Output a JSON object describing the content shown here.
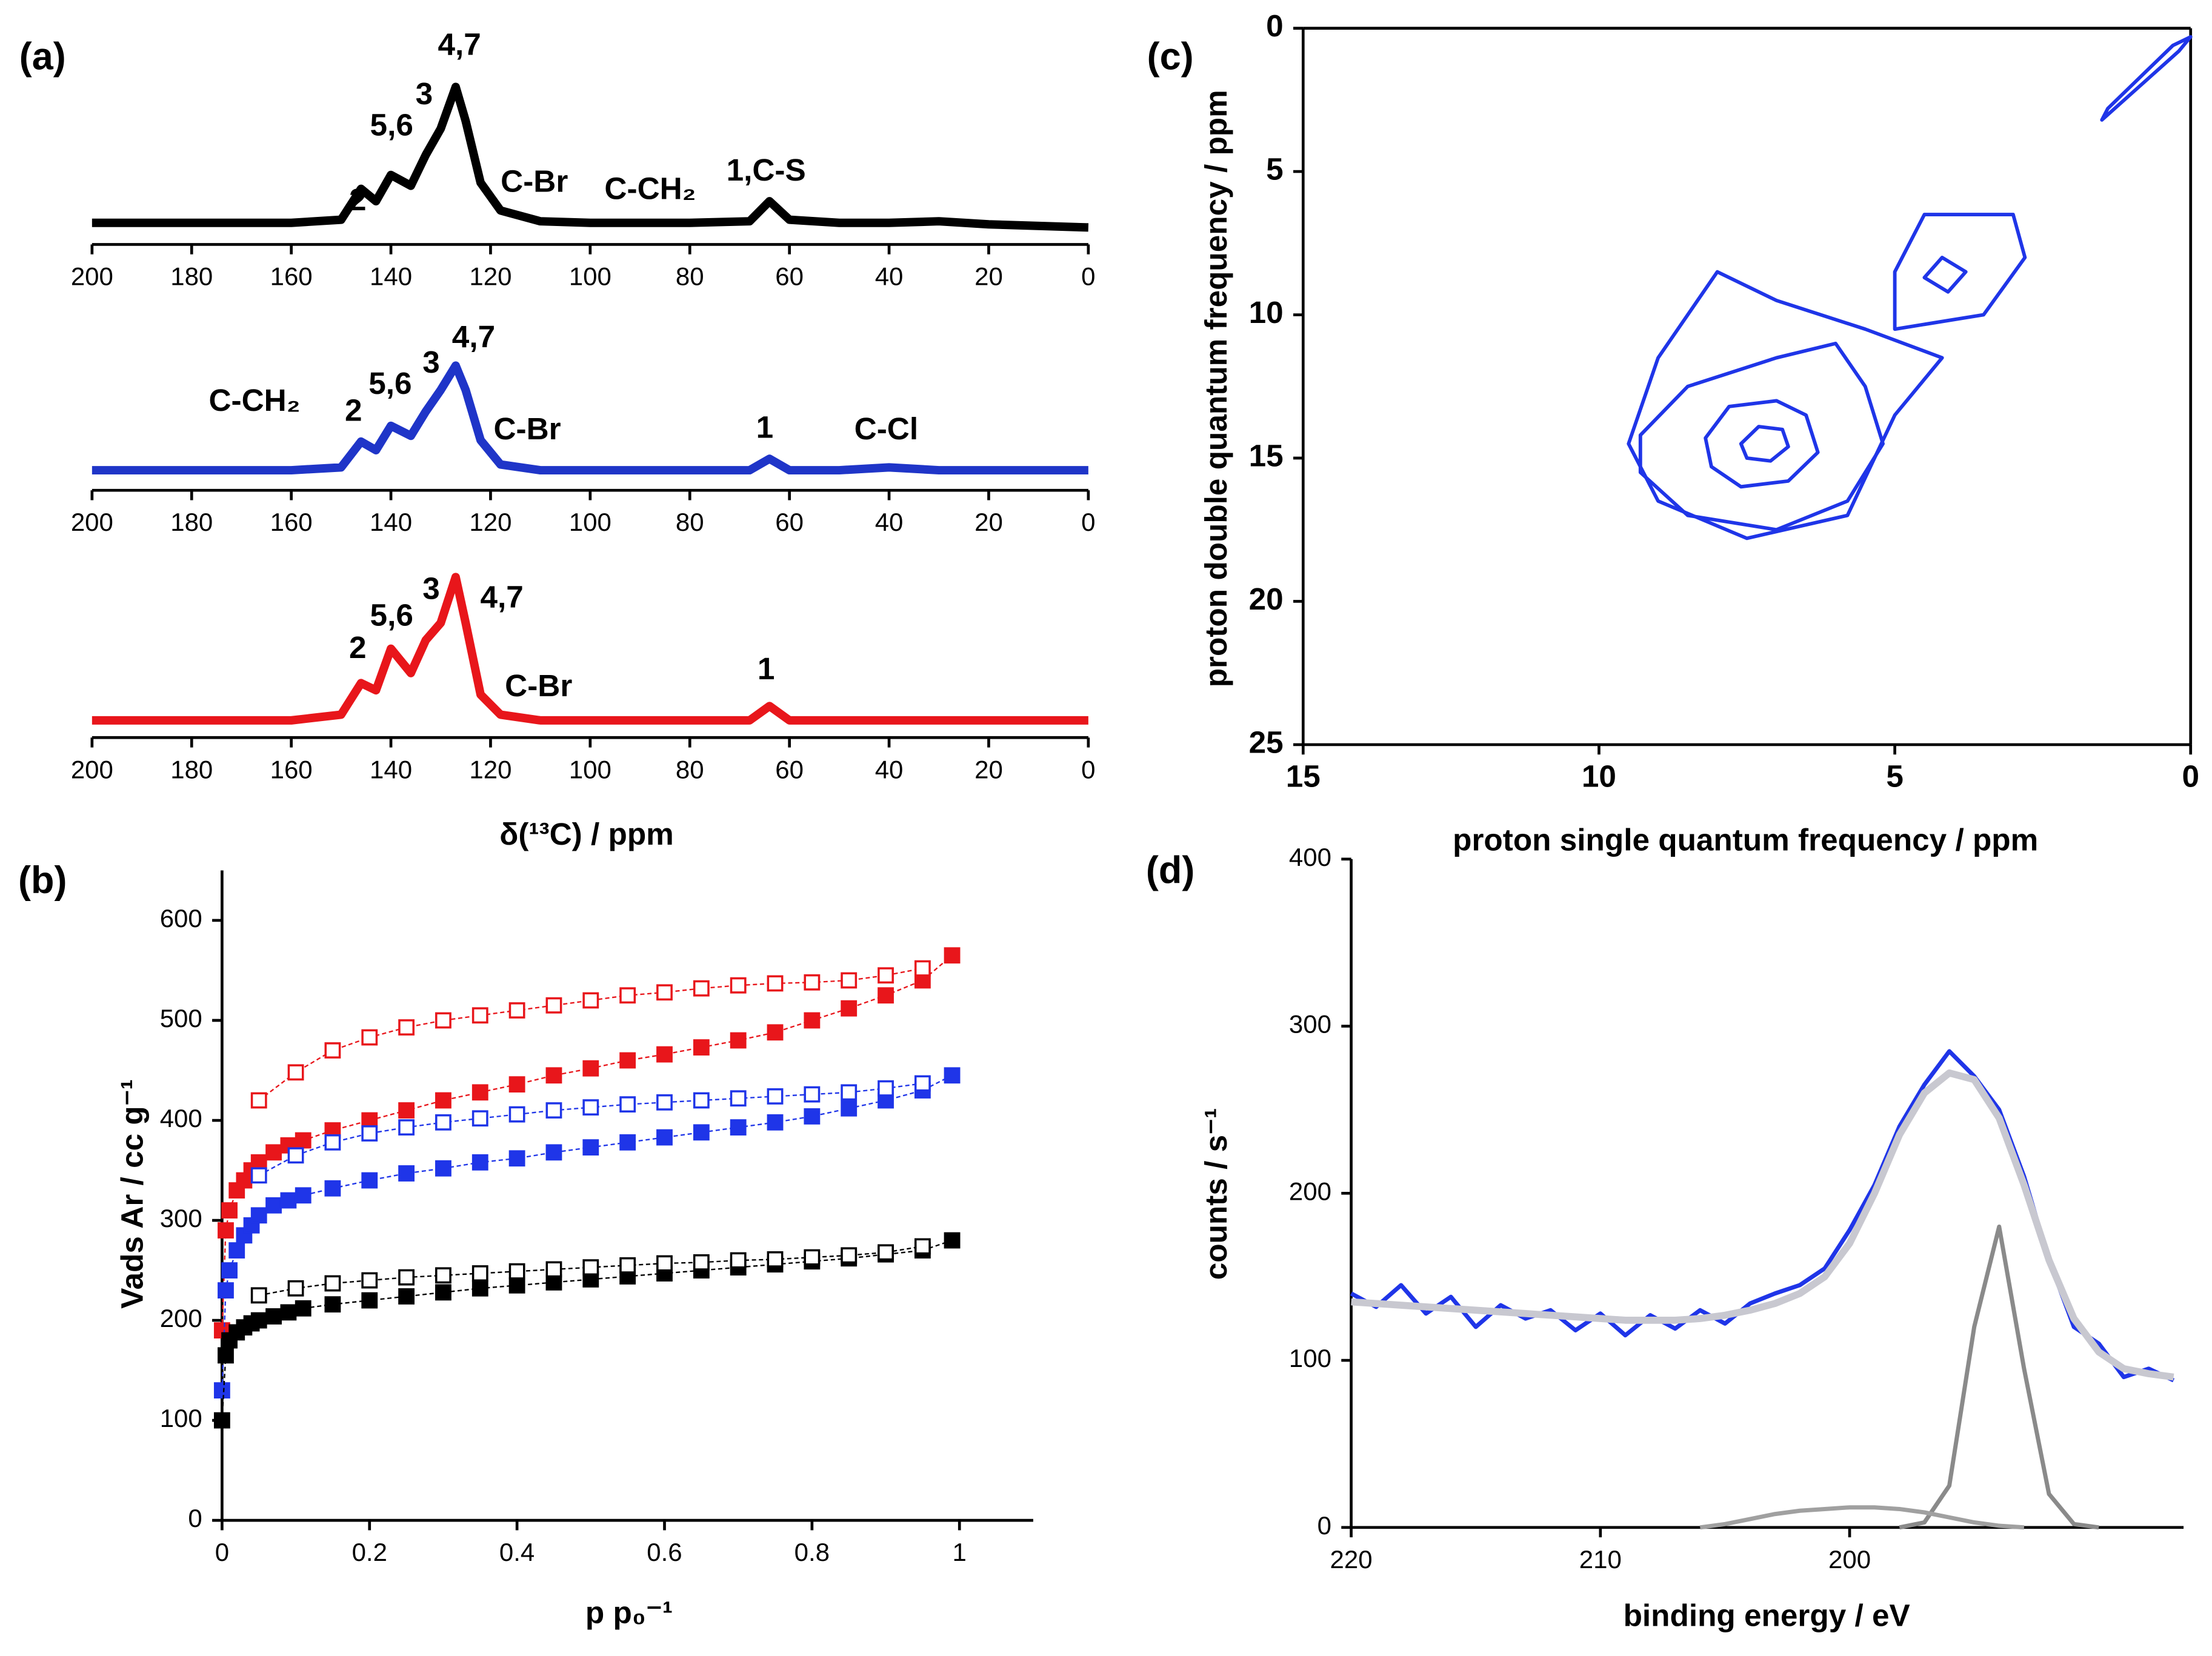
{
  "chart_data": [
    {
      "type": "line",
      "panel_label": "(a)",
      "xlim": [
        200,
        0
      ],
      "ylim": [
        0,
        140
      ],
      "xticks": [
        200,
        180,
        160,
        140,
        120,
        100,
        80,
        60,
        40,
        20,
        0
      ],
      "spines": [
        "bottom"
      ],
      "annotations": [
        "2",
        "5,6",
        "3",
        "4,7",
        "C-Br",
        "C-CH₂",
        "1,C-S"
      ],
      "series": [
        {
          "color": "#000000",
          "line_width": 6,
          "x": [
            200,
            180,
            160,
            150,
            146,
            143,
            140,
            136,
            133,
            130,
            127,
            125,
            122,
            118,
            110,
            100,
            80,
            68,
            64,
            60,
            50,
            40,
            30,
            20,
            0
          ],
          "values": [
            14,
            14,
            14,
            16,
            36,
            28,
            45,
            38,
            58,
            75,
            102,
            80,
            40,
            22,
            15,
            14,
            14,
            15,
            28,
            16,
            14,
            14,
            15,
            13,
            11
          ]
        }
      ]
    },
    {
      "type": "line",
      "xlim": [
        200,
        0
      ],
      "ylim": [
        0,
        140
      ],
      "xticks": [
        200,
        180,
        160,
        140,
        120,
        100,
        80,
        60,
        40,
        20,
        0
      ],
      "spines": [
        "bottom"
      ],
      "annotations": [
        "C-CH₂",
        "2",
        "5,6",
        "3",
        "4,7",
        "C-Br",
        "1",
        "C-Cl"
      ],
      "series": [
        {
          "color": "#1f35c8",
          "line_width": 6,
          "x": [
            200,
            180,
            160,
            150,
            146,
            143,
            140,
            136,
            133,
            130,
            127,
            125,
            122,
            118,
            110,
            100,
            80,
            68,
            64,
            60,
            50,
            40,
            30,
            20,
            0
          ],
          "values": [
            14,
            14,
            14,
            16,
            34,
            28,
            45,
            38,
            55,
            70,
            87,
            70,
            35,
            18,
            14,
            14,
            14,
            14,
            22,
            14,
            14,
            16,
            14,
            14,
            14
          ]
        }
      ]
    },
    {
      "type": "line",
      "x_label": "δ(¹³C) / ppm",
      "xlim": [
        200,
        0
      ],
      "ylim": [
        0,
        140
      ],
      "xticks": [
        200,
        180,
        160,
        140,
        120,
        100,
        80,
        60,
        40,
        20,
        0
      ],
      "spines": [
        "bottom"
      ],
      "annotations": [
        "2",
        "5,6",
        "3",
        "4,7",
        "C-Br",
        "1"
      ],
      "series": [
        {
          "color": "#e8161b",
          "line_width": 6,
          "x": [
            200,
            180,
            160,
            150,
            146,
            143,
            140,
            136,
            133,
            130,
            127,
            125,
            122,
            118,
            110,
            100,
            80,
            68,
            64,
            60,
            50,
            40,
            30,
            20,
            0
          ],
          "values": [
            12,
            12,
            12,
            16,
            38,
            33,
            62,
            45,
            68,
            80,
            112,
            80,
            30,
            16,
            12,
            12,
            12,
            12,
            22,
            12,
            12,
            12,
            12,
            12,
            12
          ]
        }
      ]
    },
    {
      "type": "scatter",
      "panel_label": "(b)",
      "x_label": "p p₀⁻¹",
      "y_label": "Vads Ar / cc g⁻¹",
      "xlim": [
        0,
        1.1
      ],
      "ylim": [
        0,
        650
      ],
      "xticks": [
        0,
        0.2,
        0.4,
        0.6,
        0.8,
        1
      ],
      "yticks": [
        0,
        100,
        200,
        300,
        400,
        500,
        600
      ],
      "spines": [
        "left",
        "bottom"
      ],
      "series": [
        {
          "color": "#e8161b",
          "marker": "filled",
          "x": [
            0,
            0.005,
            0.01,
            0.02,
            0.03,
            0.04,
            0.05,
            0.07,
            0.09,
            0.11,
            0.15,
            0.2,
            0.25,
            0.3,
            0.35,
            0.4,
            0.45,
            0.5,
            0.55,
            0.6,
            0.65,
            0.7,
            0.75,
            0.8,
            0.85,
            0.9,
            0.95,
            0.99
          ],
          "values": [
            190,
            290,
            310,
            330,
            340,
            350,
            358,
            368,
            375,
            380,
            390,
            400,
            410,
            420,
            428,
            436,
            445,
            452,
            460,
            466,
            473,
            480,
            488,
            500,
            512,
            525,
            540,
            565
          ]
        },
        {
          "color": "#e8161b",
          "marker": "open",
          "x": [
            0.05,
            0.1,
            0.15,
            0.2,
            0.25,
            0.3,
            0.35,
            0.4,
            0.45,
            0.5,
            0.55,
            0.6,
            0.65,
            0.7,
            0.75,
            0.8,
            0.85,
            0.9,
            0.95
          ],
          "values": [
            420,
            448,
            470,
            483,
            493,
            500,
            505,
            510,
            515,
            520,
            525,
            528,
            532,
            535,
            537,
            538,
            540,
            545,
            552
          ]
        },
        {
          "color": "#1f35e8",
          "marker": "filled",
          "x": [
            0,
            0.005,
            0.01,
            0.02,
            0.03,
            0.04,
            0.05,
            0.07,
            0.09,
            0.11,
            0.15,
            0.2,
            0.25,
            0.3,
            0.35,
            0.4,
            0.45,
            0.5,
            0.55,
            0.6,
            0.65,
            0.7,
            0.75,
            0.8,
            0.85,
            0.9,
            0.95,
            0.99
          ],
          "values": [
            130,
            230,
            250,
            270,
            285,
            295,
            305,
            315,
            320,
            325,
            332,
            340,
            347,
            352,
            358,
            362,
            368,
            373,
            378,
            383,
            388,
            393,
            398,
            404,
            412,
            420,
            430,
            445
          ]
        },
        {
          "color": "#1f35e8",
          "marker": "open",
          "x": [
            0.05,
            0.1,
            0.15,
            0.2,
            0.25,
            0.3,
            0.35,
            0.4,
            0.45,
            0.5,
            0.55,
            0.6,
            0.65,
            0.7,
            0.75,
            0.8,
            0.85,
            0.9,
            0.95
          ],
          "values": [
            345,
            365,
            378,
            387,
            393,
            398,
            402,
            406,
            410,
            413,
            416,
            418,
            420,
            422,
            424,
            426,
            428,
            432,
            437
          ]
        },
        {
          "color": "#000000",
          "marker": "filled",
          "x": [
            0,
            0.005,
            0.01,
            0.02,
            0.03,
            0.04,
            0.05,
            0.07,
            0.09,
            0.11,
            0.15,
            0.2,
            0.25,
            0.3,
            0.35,
            0.4,
            0.45,
            0.5,
            0.55,
            0.6,
            0.65,
            0.7,
            0.75,
            0.8,
            0.85,
            0.9,
            0.95,
            0.99
          ],
          "values": [
            100,
            165,
            180,
            188,
            193,
            197,
            200,
            204,
            208,
            212,
            216,
            220,
            224,
            228,
            232,
            235,
            238,
            241,
            244,
            247,
            250,
            253,
            256,
            259,
            262,
            266,
            270,
            280
          ]
        },
        {
          "color": "#000000",
          "marker": "open",
          "x": [
            0.05,
            0.1,
            0.15,
            0.2,
            0.25,
            0.3,
            0.35,
            0.4,
            0.45,
            0.5,
            0.55,
            0.6,
            0.65,
            0.7,
            0.75,
            0.8,
            0.85,
            0.9,
            0.95
          ],
          "values": [
            225,
            232,
            237,
            240,
            243,
            245,
            247,
            249,
            251,
            253,
            255,
            257,
            258,
            260,
            261,
            263,
            265,
            268,
            274
          ]
        }
      ]
    },
    {
      "type": "contour",
      "panel_label": "(c)",
      "x_label": "proton single quantum frequency / ppm",
      "y_label": "proton double quantum frequency / ppm",
      "xlim": [
        15,
        0
      ],
      "ylim": [
        25,
        0
      ],
      "xticks": [
        15,
        10,
        5,
        0
      ],
      "yticks": [
        0,
        5,
        10,
        15,
        20,
        25
      ],
      "spines": [
        "left",
        "bottom",
        "top",
        "right"
      ],
      "series": [
        {
          "color": "#1f35e8",
          "x": [
            9.5,
            9.0,
            8.0,
            7.0,
            5.5,
            4.2,
            5.0,
            5.8,
            7.5,
            9.0
          ],
          "values": [
            14.5,
            11.5,
            8.5,
            9.5,
            10.5,
            11.5,
            13.5,
            17.0,
            17.8,
            16.5
          ]
        },
        {
          "color": "#1f35e8",
          "x": [
            9.3,
            8.5,
            7.0,
            6.0,
            5.5,
            5.2,
            5.8,
            7.0,
            8.5,
            9.3
          ],
          "values": [
            14.2,
            12.5,
            11.5,
            11.0,
            12.5,
            14.5,
            16.5,
            17.5,
            17.0,
            15.5
          ]
        },
        {
          "color": "#1f35e8",
          "x": [
            8.2,
            7.8,
            7.0,
            6.5,
            6.3,
            6.8,
            7.6,
            8.1
          ],
          "values": [
            14.3,
            13.2,
            13.0,
            13.5,
            14.8,
            15.8,
            16.0,
            15.3
          ]
        },
        {
          "color": "#1f35e8",
          "x": [
            7.6,
            7.3,
            6.9,
            6.8,
            7.1,
            7.5
          ],
          "values": [
            14.5,
            13.9,
            14.0,
            14.6,
            15.1,
            15.0
          ]
        },
        {
          "color": "#1f35e8",
          "x": [
            5.0,
            4.5,
            3.0,
            2.8,
            3.5,
            5.0
          ],
          "values": [
            8.5,
            6.5,
            6.5,
            8.0,
            10.0,
            10.5
          ]
        },
        {
          "color": "#1f35e8",
          "x": [
            4.5,
            4.2,
            3.8,
            4.1
          ],
          "values": [
            8.7,
            8.0,
            8.5,
            9.2
          ]
        },
        {
          "color": "#1f35e8",
          "x": [
            1.5,
            0.2,
            0,
            0.3,
            1.4
          ],
          "values": [
            3.2,
            0.8,
            0.3,
            0.6,
            2.8
          ]
        }
      ]
    },
    {
      "type": "line",
      "panel_label": "(d)",
      "x_label": "binding energy / eV",
      "y_label": "counts / s⁻¹",
      "xlim": [
        220,
        186.6
      ],
      "ylim": [
        0,
        400
      ],
      "xticks": [
        220,
        210,
        200
      ],
      "yticks": [
        0,
        100,
        200,
        300,
        400
      ],
      "spines": [
        "left",
        "bottom"
      ],
      "series": [
        {
          "color": "#1f35e8",
          "line_width": 3,
          "x": [
            220,
            219,
            218,
            217,
            216,
            215,
            214,
            213,
            212,
            211,
            210,
            209,
            208,
            207,
            206,
            205,
            204,
            203,
            202,
            201,
            200,
            199,
            198,
            197,
            196,
            195,
            194,
            193,
            192,
            191,
            190,
            189,
            188,
            187
          ],
          "values": [
            140,
            132,
            145,
            128,
            138,
            120,
            133,
            125,
            130,
            118,
            128,
            115,
            127,
            119,
            130,
            122,
            134,
            140,
            145,
            155,
            178,
            205,
            240,
            265,
            285,
            270,
            250,
            210,
            160,
            120,
            110,
            90,
            95,
            88
          ]
        },
        {
          "color": "#c8c8d0",
          "line_width": 5,
          "x": [
            220,
            219,
            218,
            217,
            216,
            215,
            214,
            213,
            212,
            211,
            210,
            209,
            208,
            207,
            206,
            205,
            204,
            203,
            202,
            201,
            200,
            199,
            198,
            197,
            196,
            195,
            194,
            193,
            192,
            191,
            190,
            189,
            188,
            187
          ],
          "values": [
            135,
            134,
            133,
            132,
            131,
            130,
            129,
            128,
            127,
            126,
            125,
            124,
            124,
            124,
            125,
            127,
            130,
            134,
            140,
            150,
            170,
            200,
            235,
            260,
            272,
            268,
            245,
            205,
            160,
            125,
            105,
            95,
            92,
            90
          ]
        },
        {
          "color": "#8a8a8a",
          "line_width": 3,
          "x": [
            198,
            197,
            196,
            195,
            194,
            193,
            192,
            191,
            190
          ],
          "values": [
            0,
            3,
            25,
            120,
            180,
            95,
            20,
            2,
            0
          ]
        },
        {
          "color": "#a0a0a0",
          "line_width": 3,
          "x": [
            206,
            205,
            204,
            203,
            202,
            201,
            200,
            199,
            198,
            197,
            196,
            195,
            194,
            193
          ],
          "values": [
            0,
            2,
            5,
            8,
            10,
            11,
            12,
            12,
            11,
            9,
            6,
            3,
            1,
            0
          ]
        }
      ]
    }
  ]
}
